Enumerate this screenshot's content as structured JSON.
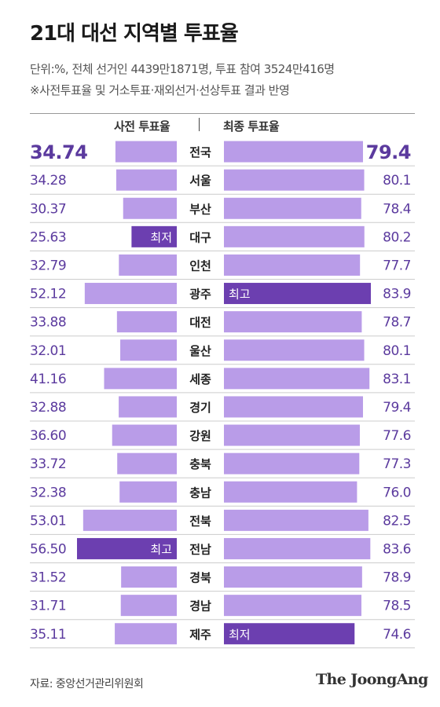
{
  "header": {
    "title": "21대 대선 지역별 투표율",
    "subtitle": "단위:%, 전체 선거인 4439만1871명, 투표 참여 3524만416명",
    "note": "※사전투표율 및 거소투표·재외선거·선상투표 결과 반영"
  },
  "footer": {
    "source": "자료: 중앙선거관리위원회",
    "brand": "The JoongAng"
  },
  "colors": {
    "bar": "#b99ce8",
    "highlight": "#6c3fb0",
    "number": "#5b3a9e",
    "divider": "#cccccc"
  },
  "chart_data": {
    "type": "bar",
    "xlim": [
      0,
      60
    ],
    "legend_left": "사전 투표율",
    "legend_right": "최종 투표율",
    "categories": [
      "전국",
      "서울",
      "부산",
      "대구",
      "인천",
      "광주",
      "대전",
      "울산",
      "세종",
      "경기",
      "강원",
      "충북",
      "충남",
      "전북",
      "전남",
      "경북",
      "경남",
      "제주"
    ],
    "series": [
      {
        "name": "사전 투표율",
        "values": [
          34.74,
          34.28,
          30.37,
          25.63,
          32.79,
          52.12,
          33.88,
          32.01,
          41.16,
          32.88,
          36.6,
          33.72,
          32.38,
          53.01,
          56.5,
          31.52,
          31.71,
          35.11
        ],
        "labels": [
          "34.74",
          "34.28",
          "30.37",
          "25.63",
          "32.79",
          "52.12",
          "33.88",
          "32.01",
          "41.16",
          "32.88",
          "36.60",
          "33.72",
          "32.38",
          "53.01",
          "56.50",
          "31.52",
          "31.71",
          "35.11"
        ]
      },
      {
        "name": "최종 투표율",
        "values": [
          79.4,
          80.1,
          78.4,
          80.2,
          77.7,
          83.9,
          78.7,
          80.1,
          83.1,
          79.4,
          77.6,
          77.3,
          76.0,
          82.5,
          83.6,
          78.9,
          78.5,
          74.6
        ],
        "labels": [
          "79.4",
          "80.1",
          "78.4",
          "80.2",
          "77.7",
          "83.9",
          "78.7",
          "80.1",
          "83.1",
          "79.4",
          "77.6",
          "77.3",
          "76.0",
          "82.5",
          "83.6",
          "78.9",
          "78.5",
          "74.6"
        ]
      }
    ],
    "annotations": [
      {
        "series": "사전 투표율",
        "category": "대구",
        "text": "최저"
      },
      {
        "series": "사전 투표율",
        "category": "전남",
        "text": "최고"
      },
      {
        "series": "최종 투표율",
        "category": "광주",
        "text": "최고"
      },
      {
        "series": "최종 투표율",
        "category": "제주",
        "text": "최저"
      }
    ]
  }
}
